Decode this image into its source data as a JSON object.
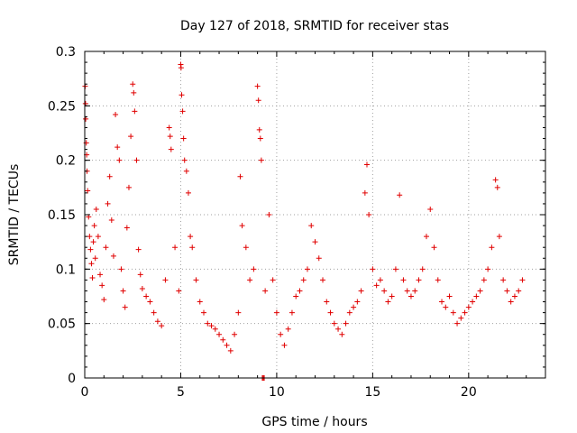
{
  "chart_data": {
    "type": "scatter",
    "title": "Day 127 of 2018, SRMTID for receiver stas",
    "xlabel": "GPS time / hours",
    "ylabel": "SRMTID / TECUs",
    "xlim": [
      0,
      24
    ],
    "ylim": [
      0,
      0.3
    ],
    "xticks": [
      0,
      5,
      10,
      15,
      20
    ],
    "yticks": [
      0,
      0.05,
      0.1,
      0.15,
      0.2,
      0.25,
      0.3
    ],
    "xtick_labels": [
      "0",
      "5",
      "10",
      "15",
      "20"
    ],
    "ytick_labels": [
      "0",
      "0.05",
      "0.1",
      "0.15",
      "0.2",
      "0.25",
      "0.3"
    ],
    "grid": true,
    "marker": "+",
    "color": "#e00000",
    "x_data_range": [
      0,
      22.8
    ],
    "series": [
      {
        "name": "SRMTID",
        "points": [
          [
            0.02,
            0.268
          ],
          [
            0.04,
            0.252
          ],
          [
            0.05,
            0.238
          ],
          [
            0.08,
            0.216
          ],
          [
            0.1,
            0.205
          ],
          [
            0.12,
            0.19
          ],
          [
            0.15,
            0.172
          ],
          [
            0.2,
            0.148
          ],
          [
            0.25,
            0.13
          ],
          [
            0.3,
            0.118
          ],
          [
            0.35,
            0.105
          ],
          [
            0.4,
            0.092
          ],
          [
            0.45,
            0.125
          ],
          [
            0.5,
            0.14
          ],
          [
            0.55,
            0.11
          ],
          [
            0.6,
            0.155
          ],
          [
            0.7,
            0.13
          ],
          [
            0.8,
            0.095
          ],
          [
            0.9,
            0.085
          ],
          [
            1.0,
            0.072
          ],
          [
            1.1,
            0.12
          ],
          [
            1.2,
            0.16
          ],
          [
            1.3,
            0.185
          ],
          [
            1.4,
            0.145
          ],
          [
            1.5,
            0.112
          ],
          [
            1.6,
            0.242
          ],
          [
            1.7,
            0.212
          ],
          [
            1.8,
            0.2
          ],
          [
            1.9,
            0.1
          ],
          [
            2.0,
            0.08
          ],
          [
            2.1,
            0.065
          ],
          [
            2.2,
            0.138
          ],
          [
            2.3,
            0.175
          ],
          [
            2.4,
            0.222
          ],
          [
            2.5,
            0.27
          ],
          [
            2.55,
            0.262
          ],
          [
            2.6,
            0.245
          ],
          [
            2.7,
            0.2
          ],
          [
            2.8,
            0.118
          ],
          [
            2.9,
            0.095
          ],
          [
            3.0,
            0.082
          ],
          [
            3.2,
            0.075
          ],
          [
            3.4,
            0.07
          ],
          [
            3.6,
            0.06
          ],
          [
            3.8,
            0.052
          ],
          [
            4.0,
            0.048
          ],
          [
            4.2,
            0.09
          ],
          [
            4.4,
            0.23
          ],
          [
            4.45,
            0.222
          ],
          [
            4.5,
            0.21
          ],
          [
            4.7,
            0.12
          ],
          [
            4.9,
            0.08
          ],
          [
            5.0,
            0.288
          ],
          [
            5.02,
            0.285
          ],
          [
            5.05,
            0.26
          ],
          [
            5.1,
            0.245
          ],
          [
            5.15,
            0.22
          ],
          [
            5.2,
            0.2
          ],
          [
            5.3,
            0.19
          ],
          [
            5.4,
            0.17
          ],
          [
            5.5,
            0.13
          ],
          [
            5.6,
            0.12
          ],
          [
            5.8,
            0.09
          ],
          [
            6.0,
            0.07
          ],
          [
            6.2,
            0.06
          ],
          [
            6.4,
            0.05
          ],
          [
            6.6,
            0.048
          ],
          [
            6.8,
            0.045
          ],
          [
            7.0,
            0.04
          ],
          [
            7.2,
            0.035
          ],
          [
            7.4,
            0.03
          ],
          [
            7.6,
            0.025
          ],
          [
            7.8,
            0.04
          ],
          [
            8.0,
            0.06
          ],
          [
            8.1,
            0.185
          ],
          [
            8.2,
            0.14
          ],
          [
            8.4,
            0.12
          ],
          [
            8.6,
            0.09
          ],
          [
            8.8,
            0.1
          ],
          [
            9.0,
            0.268
          ],
          [
            9.05,
            0.255
          ],
          [
            9.1,
            0.228
          ],
          [
            9.15,
            0.22
          ],
          [
            9.2,
            0.2
          ],
          [
            9.25,
            0.0
          ],
          [
            9.3,
            0.0
          ],
          [
            9.35,
            0.0
          ],
          [
            9.4,
            0.08
          ],
          [
            9.6,
            0.15
          ],
          [
            9.8,
            0.09
          ],
          [
            10.0,
            0.06
          ],
          [
            10.2,
            0.04
          ],
          [
            10.4,
            0.03
          ],
          [
            10.6,
            0.045
          ],
          [
            10.8,
            0.06
          ],
          [
            11.0,
            0.075
          ],
          [
            11.2,
            0.08
          ],
          [
            11.4,
            0.09
          ],
          [
            11.6,
            0.1
          ],
          [
            11.8,
            0.14
          ],
          [
            12.0,
            0.125
          ],
          [
            12.2,
            0.11
          ],
          [
            12.4,
            0.09
          ],
          [
            12.6,
            0.07
          ],
          [
            12.8,
            0.06
          ],
          [
            13.0,
            0.05
          ],
          [
            13.2,
            0.045
          ],
          [
            13.4,
            0.04
          ],
          [
            13.6,
            0.05
          ],
          [
            13.8,
            0.06
          ],
          [
            14.0,
            0.065
          ],
          [
            14.2,
            0.07
          ],
          [
            14.4,
            0.08
          ],
          [
            14.6,
            0.17
          ],
          [
            14.7,
            0.196
          ],
          [
            14.8,
            0.15
          ],
          [
            15.0,
            0.1
          ],
          [
            15.2,
            0.085
          ],
          [
            15.4,
            0.09
          ],
          [
            15.6,
            0.08
          ],
          [
            15.8,
            0.07
          ],
          [
            16.0,
            0.075
          ],
          [
            16.2,
            0.1
          ],
          [
            16.4,
            0.168
          ],
          [
            16.6,
            0.09
          ],
          [
            16.8,
            0.08
          ],
          [
            17.0,
            0.075
          ],
          [
            17.2,
            0.08
          ],
          [
            17.4,
            0.09
          ],
          [
            17.6,
            0.1
          ],
          [
            17.8,
            0.13
          ],
          [
            18.0,
            0.155
          ],
          [
            18.2,
            0.12
          ],
          [
            18.4,
            0.09
          ],
          [
            18.6,
            0.07
          ],
          [
            18.8,
            0.065
          ],
          [
            19.0,
            0.075
          ],
          [
            19.2,
            0.06
          ],
          [
            19.4,
            0.05
          ],
          [
            19.6,
            0.055
          ],
          [
            19.8,
            0.06
          ],
          [
            20.0,
            0.065
          ],
          [
            20.2,
            0.07
          ],
          [
            20.4,
            0.075
          ],
          [
            20.6,
            0.08
          ],
          [
            20.8,
            0.09
          ],
          [
            21.0,
            0.1
          ],
          [
            21.2,
            0.12
          ],
          [
            21.4,
            0.182
          ],
          [
            21.5,
            0.175
          ],
          [
            21.6,
            0.13
          ],
          [
            21.8,
            0.09
          ],
          [
            22.0,
            0.08
          ],
          [
            22.2,
            0.07
          ],
          [
            22.4,
            0.075
          ],
          [
            22.6,
            0.08
          ],
          [
            22.8,
            0.09
          ]
        ]
      }
    ]
  }
}
